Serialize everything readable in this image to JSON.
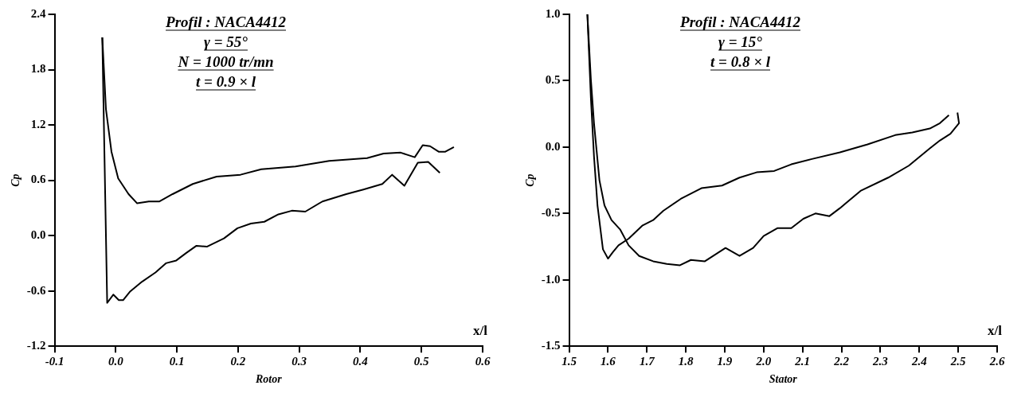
{
  "chart_data": [
    {
      "type": "line",
      "title": "Profil : NACA4412",
      "annotations": [
        "γ = 55°",
        "N = 1000 tr/mn",
        "t = 0.9 × l",
        "x/l"
      ],
      "xlabel": "Rotor",
      "ylabel": "Cp",
      "xlim": [
        -0.1,
        0.6
      ],
      "xticks": [
        -0.1,
        {
          "value": 0,
          "label": "0.0"
        },
        0.1,
        0.2,
        0.3,
        0.4,
        0.5,
        0.6
      ],
      "ylim": [
        -1.2,
        2.4
      ],
      "yticks": [
        -1.2,
        -0.6,
        {
          "value": 0,
          "label": "0.0"
        },
        0.6,
        1.2,
        1.8,
        2.4
      ],
      "grid": false,
      "legend": false,
      "marker": "none",
      "line_style": "solid",
      "series": [
        {
          "color": "#000000",
          "x": [
            -0.022,
            -0.016,
            -0.007,
            0.004,
            0.021,
            0.035,
            0.054,
            0.071,
            0.093,
            0.126,
            0.165,
            0.204,
            0.238,
            0.294,
            0.349,
            0.411,
            0.438,
            0.466,
            0.489,
            0.502,
            0.514,
            0.528,
            0.539,
            0.553
          ],
          "values": [
            2.15,
            1.37,
            0.91,
            0.62,
            0.45,
            0.35,
            0.37,
            0.37,
            0.45,
            0.56,
            0.64,
            0.66,
            0.72,
            0.75,
            0.81,
            0.84,
            0.89,
            0.9,
            0.85,
            0.98,
            0.97,
            0.91,
            0.91,
            0.96
          ]
        },
        {
          "color": "#000000",
          "x": [
            -0.022,
            -0.014,
            -0.004,
            0.005,
            0.012,
            0.023,
            0.043,
            0.065,
            0.082,
            0.099,
            0.115,
            0.132,
            0.149,
            0.177,
            0.199,
            0.221,
            0.243,
            0.266,
            0.288,
            0.31,
            0.338,
            0.377,
            0.405,
            0.436,
            0.452,
            0.472,
            0.494,
            0.511,
            0.53
          ],
          "values": [
            2.15,
            -0.73,
            -0.64,
            -0.7,
            -0.7,
            -0.61,
            -0.5,
            -0.4,
            -0.3,
            -0.27,
            -0.19,
            -0.11,
            -0.12,
            -0.03,
            0.08,
            0.13,
            0.15,
            0.23,
            0.27,
            0.26,
            0.37,
            0.45,
            0.5,
            0.56,
            0.66,
            0.54,
            0.79,
            0.8,
            0.68
          ]
        }
      ]
    },
    {
      "type": "line",
      "title": "Profil : NACA4412",
      "annotations": [
        "γ = 15°",
        "t = 0.8 × l",
        "x/l"
      ],
      "xlabel": "Stator",
      "ylabel": "Cp",
      "xlim": [
        1.5,
        2.6
      ],
      "xticks": [
        1.5,
        1.6,
        1.7,
        1.8,
        1.9,
        {
          "value": 2,
          "label": "2.0"
        },
        2.1,
        2.2,
        2.3,
        2.4,
        2.5,
        2.6
      ],
      "ylim": [
        -1.5,
        1.0
      ],
      "yticks": [
        -1.5,
        {
          "value": -1,
          "label": "-1.0"
        },
        -0.5,
        {
          "value": 0,
          "label": "0.0"
        },
        0.5,
        {
          "value": 1,
          "label": "1.0"
        }
      ],
      "grid": false,
      "legend": false,
      "marker": "none",
      "line_style": "solid",
      "series": [
        {
          "color": "#000000",
          "x": [
            1.547,
            1.556,
            1.564,
            1.573,
            1.587,
            1.6,
            1.613,
            1.627,
            1.653,
            1.689,
            1.716,
            1.742,
            1.787,
            1.84,
            1.893,
            1.938,
            1.982,
            2.027,
            2.071,
            2.124,
            2.196,
            2.267,
            2.338,
            2.382,
            2.427,
            2.453,
            2.476
          ],
          "values": [
            1.0,
            0.37,
            -0.07,
            -0.44,
            -0.77,
            -0.84,
            -0.79,
            -0.74,
            -0.69,
            -0.59,
            -0.55,
            -0.48,
            -0.39,
            -0.31,
            -0.29,
            -0.23,
            -0.19,
            -0.18,
            -0.13,
            -0.09,
            -0.04,
            0.02,
            0.09,
            0.11,
            0.14,
            0.18,
            0.24
          ]
        },
        {
          "color": "#000000",
          "x": [
            1.547,
            1.556,
            1.564,
            1.578,
            1.591,
            1.609,
            1.631,
            1.653,
            1.68,
            1.716,
            1.751,
            1.785,
            1.813,
            1.849,
            1.902,
            1.938,
            1.973,
            2.0,
            2.036,
            2.071,
            2.102,
            2.133,
            2.169,
            2.196,
            2.249,
            2.32,
            2.373,
            2.427,
            2.453,
            2.48,
            2.502,
            2.498
          ],
          "values": [
            1.0,
            0.51,
            0.18,
            -0.25,
            -0.44,
            -0.55,
            -0.62,
            -0.74,
            -0.82,
            -0.86,
            -0.88,
            -0.89,
            -0.85,
            -0.86,
            -0.76,
            -0.82,
            -0.76,
            -0.67,
            -0.61,
            -0.61,
            -0.54,
            -0.5,
            -0.52,
            -0.46,
            -0.33,
            -0.23,
            -0.14,
            -0.01,
            0.05,
            0.1,
            0.18,
            0.26
          ]
        }
      ]
    }
  ]
}
